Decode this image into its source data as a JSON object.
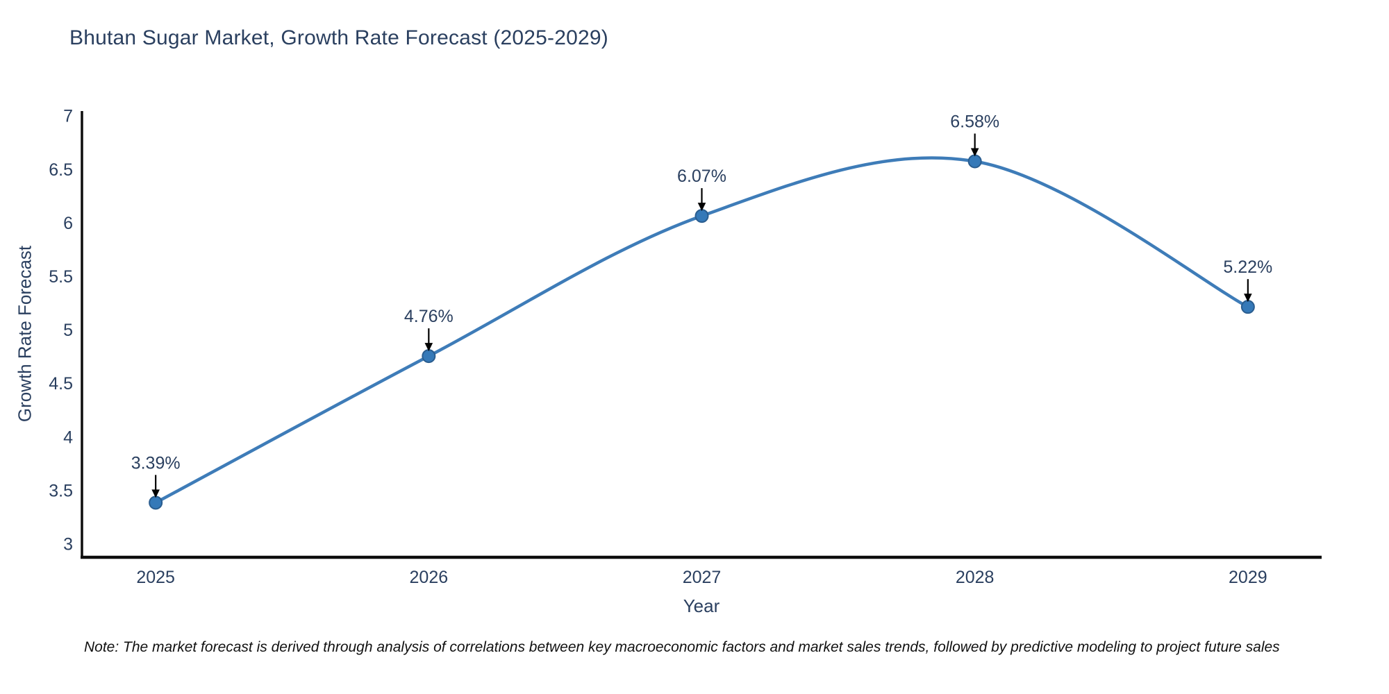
{
  "title": "Bhutan Sugar Market, Growth Rate Forecast (2025-2029)",
  "note": "Note: The market forecast is derived through analysis of correlations between key macroeconomic factors and market sales trends, followed by predictive modeling to project future sales",
  "chart_data": {
    "type": "line",
    "title": "Bhutan Sugar Market, Growth Rate Forecast (2025-2029)",
    "xlabel": "Year",
    "ylabel": "Growth Rate Forecast",
    "categories": [
      "2025",
      "2026",
      "2027",
      "2028",
      "2029"
    ],
    "x": [
      2025,
      2026,
      2027,
      2028,
      2029
    ],
    "values": [
      3.39,
      4.76,
      6.07,
      6.58,
      5.22
    ],
    "point_labels": [
      "3.39%",
      "4.76%",
      "6.07%",
      "6.58%",
      "5.22%"
    ],
    "yticks": [
      3,
      3.5,
      4,
      4.5,
      5,
      5.5,
      6,
      6.5,
      7
    ],
    "ylim": [
      2.88,
      7.05
    ],
    "xlim": [
      2024.73,
      2029.27
    ],
    "line_shape": "spline",
    "grid": false,
    "legend": "none",
    "colors": {
      "line": "#3e7cb8",
      "marker_fill": "#3579b8",
      "marker_edge": "#2a5d8f",
      "annotation_text": "#2a3f5f",
      "annotation_arrow": "#000000",
      "axis_line": "#0d0d0d",
      "tick_text": "#2a3f5f"
    }
  }
}
